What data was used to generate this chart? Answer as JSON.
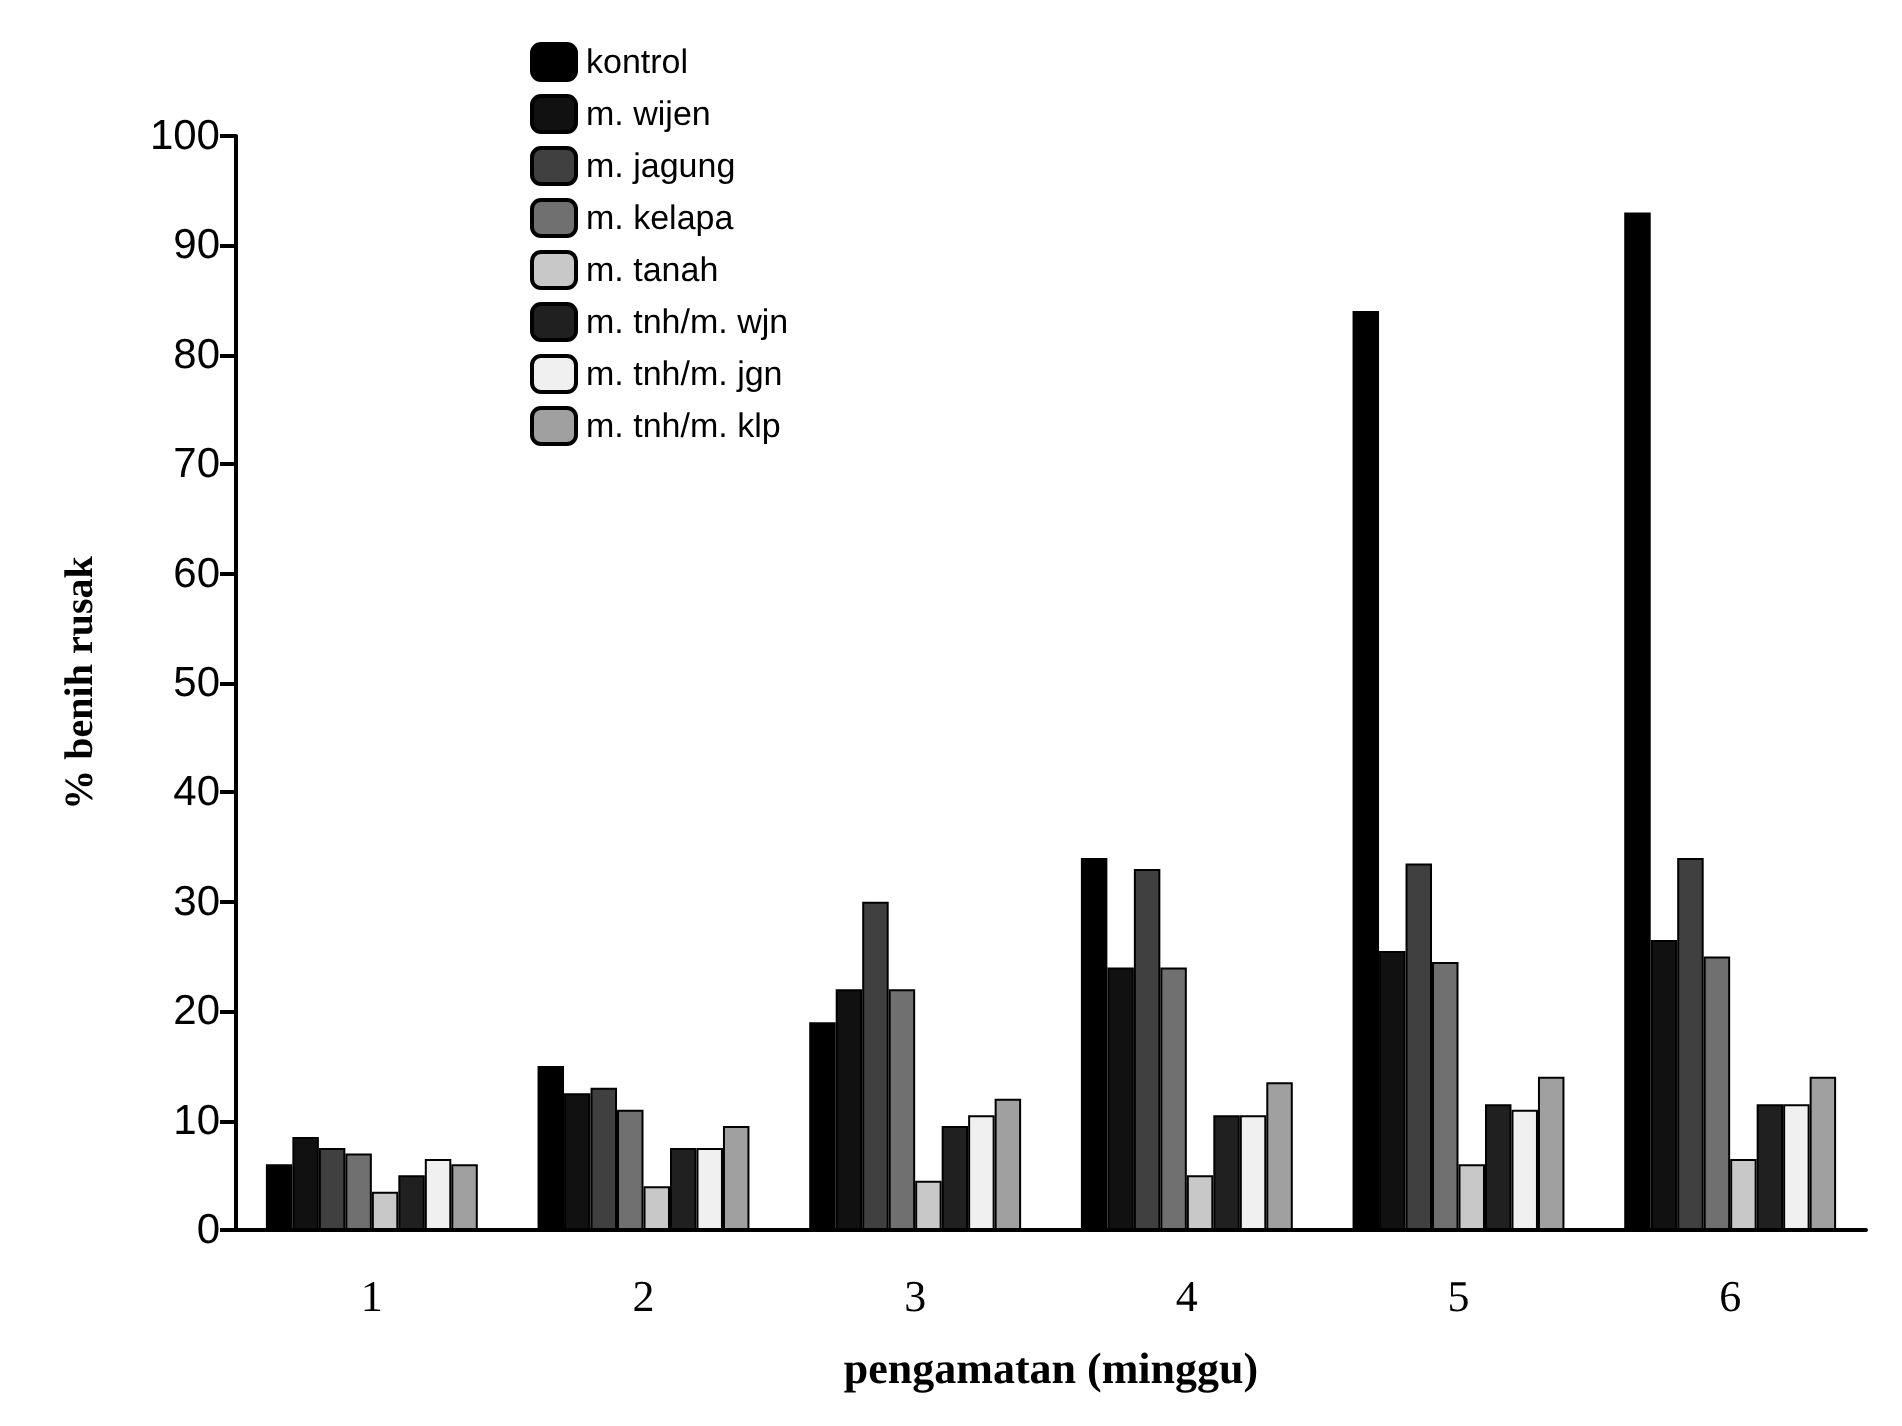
{
  "chart_data": {
    "type": "bar",
    "xlabel": "pengamatan (minggu)",
    "ylabel": "% benih rusak",
    "categories": [
      "1",
      "2",
      "3",
      "4",
      "5",
      "6"
    ],
    "ylim": [
      0,
      100
    ],
    "yticks": [
      0,
      10,
      20,
      30,
      40,
      50,
      60,
      70,
      80,
      90,
      100
    ],
    "grid": false,
    "legend": "top",
    "series": [
      {
        "name": "kontrol",
        "color": "#000000",
        "values": [
          6,
          15,
          19,
          34,
          84,
          93
        ]
      },
      {
        "name": "m. wijen",
        "color": "#111111",
        "values": [
          8.5,
          12.5,
          22,
          24,
          25.5,
          26.5
        ]
      },
      {
        "name": "m. jagung",
        "color": "#404040",
        "values": [
          7.5,
          13,
          30,
          33,
          33.5,
          34
        ]
      },
      {
        "name": "m. kelapa",
        "color": "#707070",
        "values": [
          7,
          11,
          22,
          24,
          24.5,
          25
        ]
      },
      {
        "name": "m. tanah",
        "color": "#c8c8c8",
        "values": [
          3.5,
          4,
          4.5,
          5,
          6,
          6.5
        ]
      },
      {
        "name": "m. tnh/m. wjn",
        "color": "#202020",
        "values": [
          5,
          7.5,
          9.5,
          10.5,
          11.5,
          11.5
        ]
      },
      {
        "name": "m. tnh/m. jgn",
        "color": "#f0f0f0",
        "values": [
          6.5,
          7.5,
          10.5,
          10.5,
          11,
          11.5
        ]
      },
      {
        "name": "m. tnh/m. klp",
        "color": "#a0a0a0",
        "values": [
          6,
          9.5,
          12,
          13.5,
          14,
          14
        ]
      }
    ]
  }
}
